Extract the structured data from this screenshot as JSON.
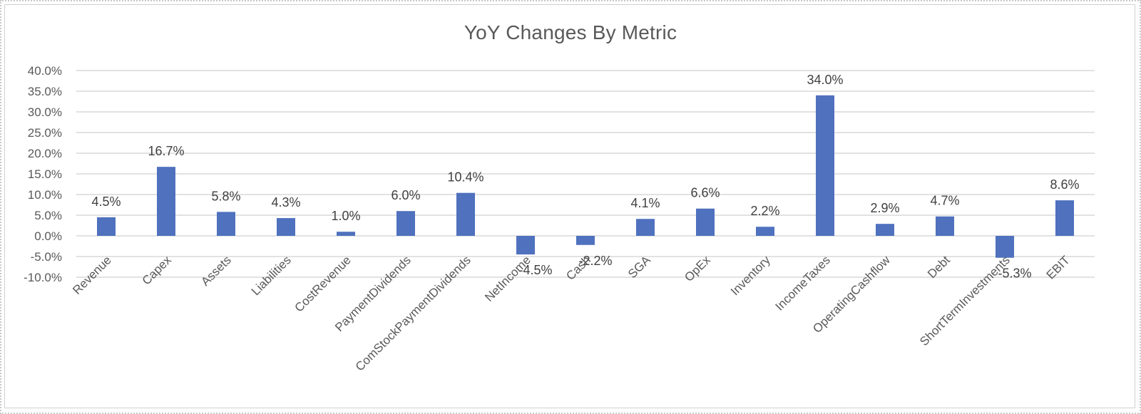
{
  "chart_data": {
    "type": "bar",
    "title": "YoY Changes By Metric",
    "xlabel": "",
    "ylabel": "",
    "ylim": [
      -10.0,
      40.0
    ],
    "ytick_step": 5.0,
    "ytick_labels": [
      "40.0%",
      "35.0%",
      "30.0%",
      "25.0%",
      "20.0%",
      "15.0%",
      "10.0%",
      "5.0%",
      "0.0%",
      "-5.0%",
      "-10.0%"
    ],
    "grid": true,
    "legend": "none",
    "bar_color": "#4f71be",
    "categories": [
      "Revenue",
      "Capex",
      "Assets",
      "Liabilities",
      "CostRevenue",
      "PaymentDividends",
      "ComStockPaymentDividends",
      "NetIncome",
      "Cash",
      "SGA",
      "OpEx",
      "Inventory",
      "IncomeTaxes",
      "OperatingCashflow",
      "Debt",
      "ShortTermInvestments",
      "EBIT"
    ],
    "values": [
      4.5,
      16.7,
      5.8,
      4.3,
      1.0,
      6.0,
      10.4,
      -4.5,
      -2.2,
      4.1,
      6.6,
      2.2,
      34.0,
      2.9,
      4.7,
      -5.3,
      8.6
    ],
    "data_labels": [
      "4.5%",
      "16.7%",
      "5.8%",
      "4.3%",
      "1.0%",
      "6.0%",
      "10.4%",
      "-4.5%",
      "-2.2%",
      "4.1%",
      "6.6%",
      "2.2%",
      "34.0%",
      "2.9%",
      "4.7%",
      "-5.3%",
      "8.6%"
    ]
  }
}
